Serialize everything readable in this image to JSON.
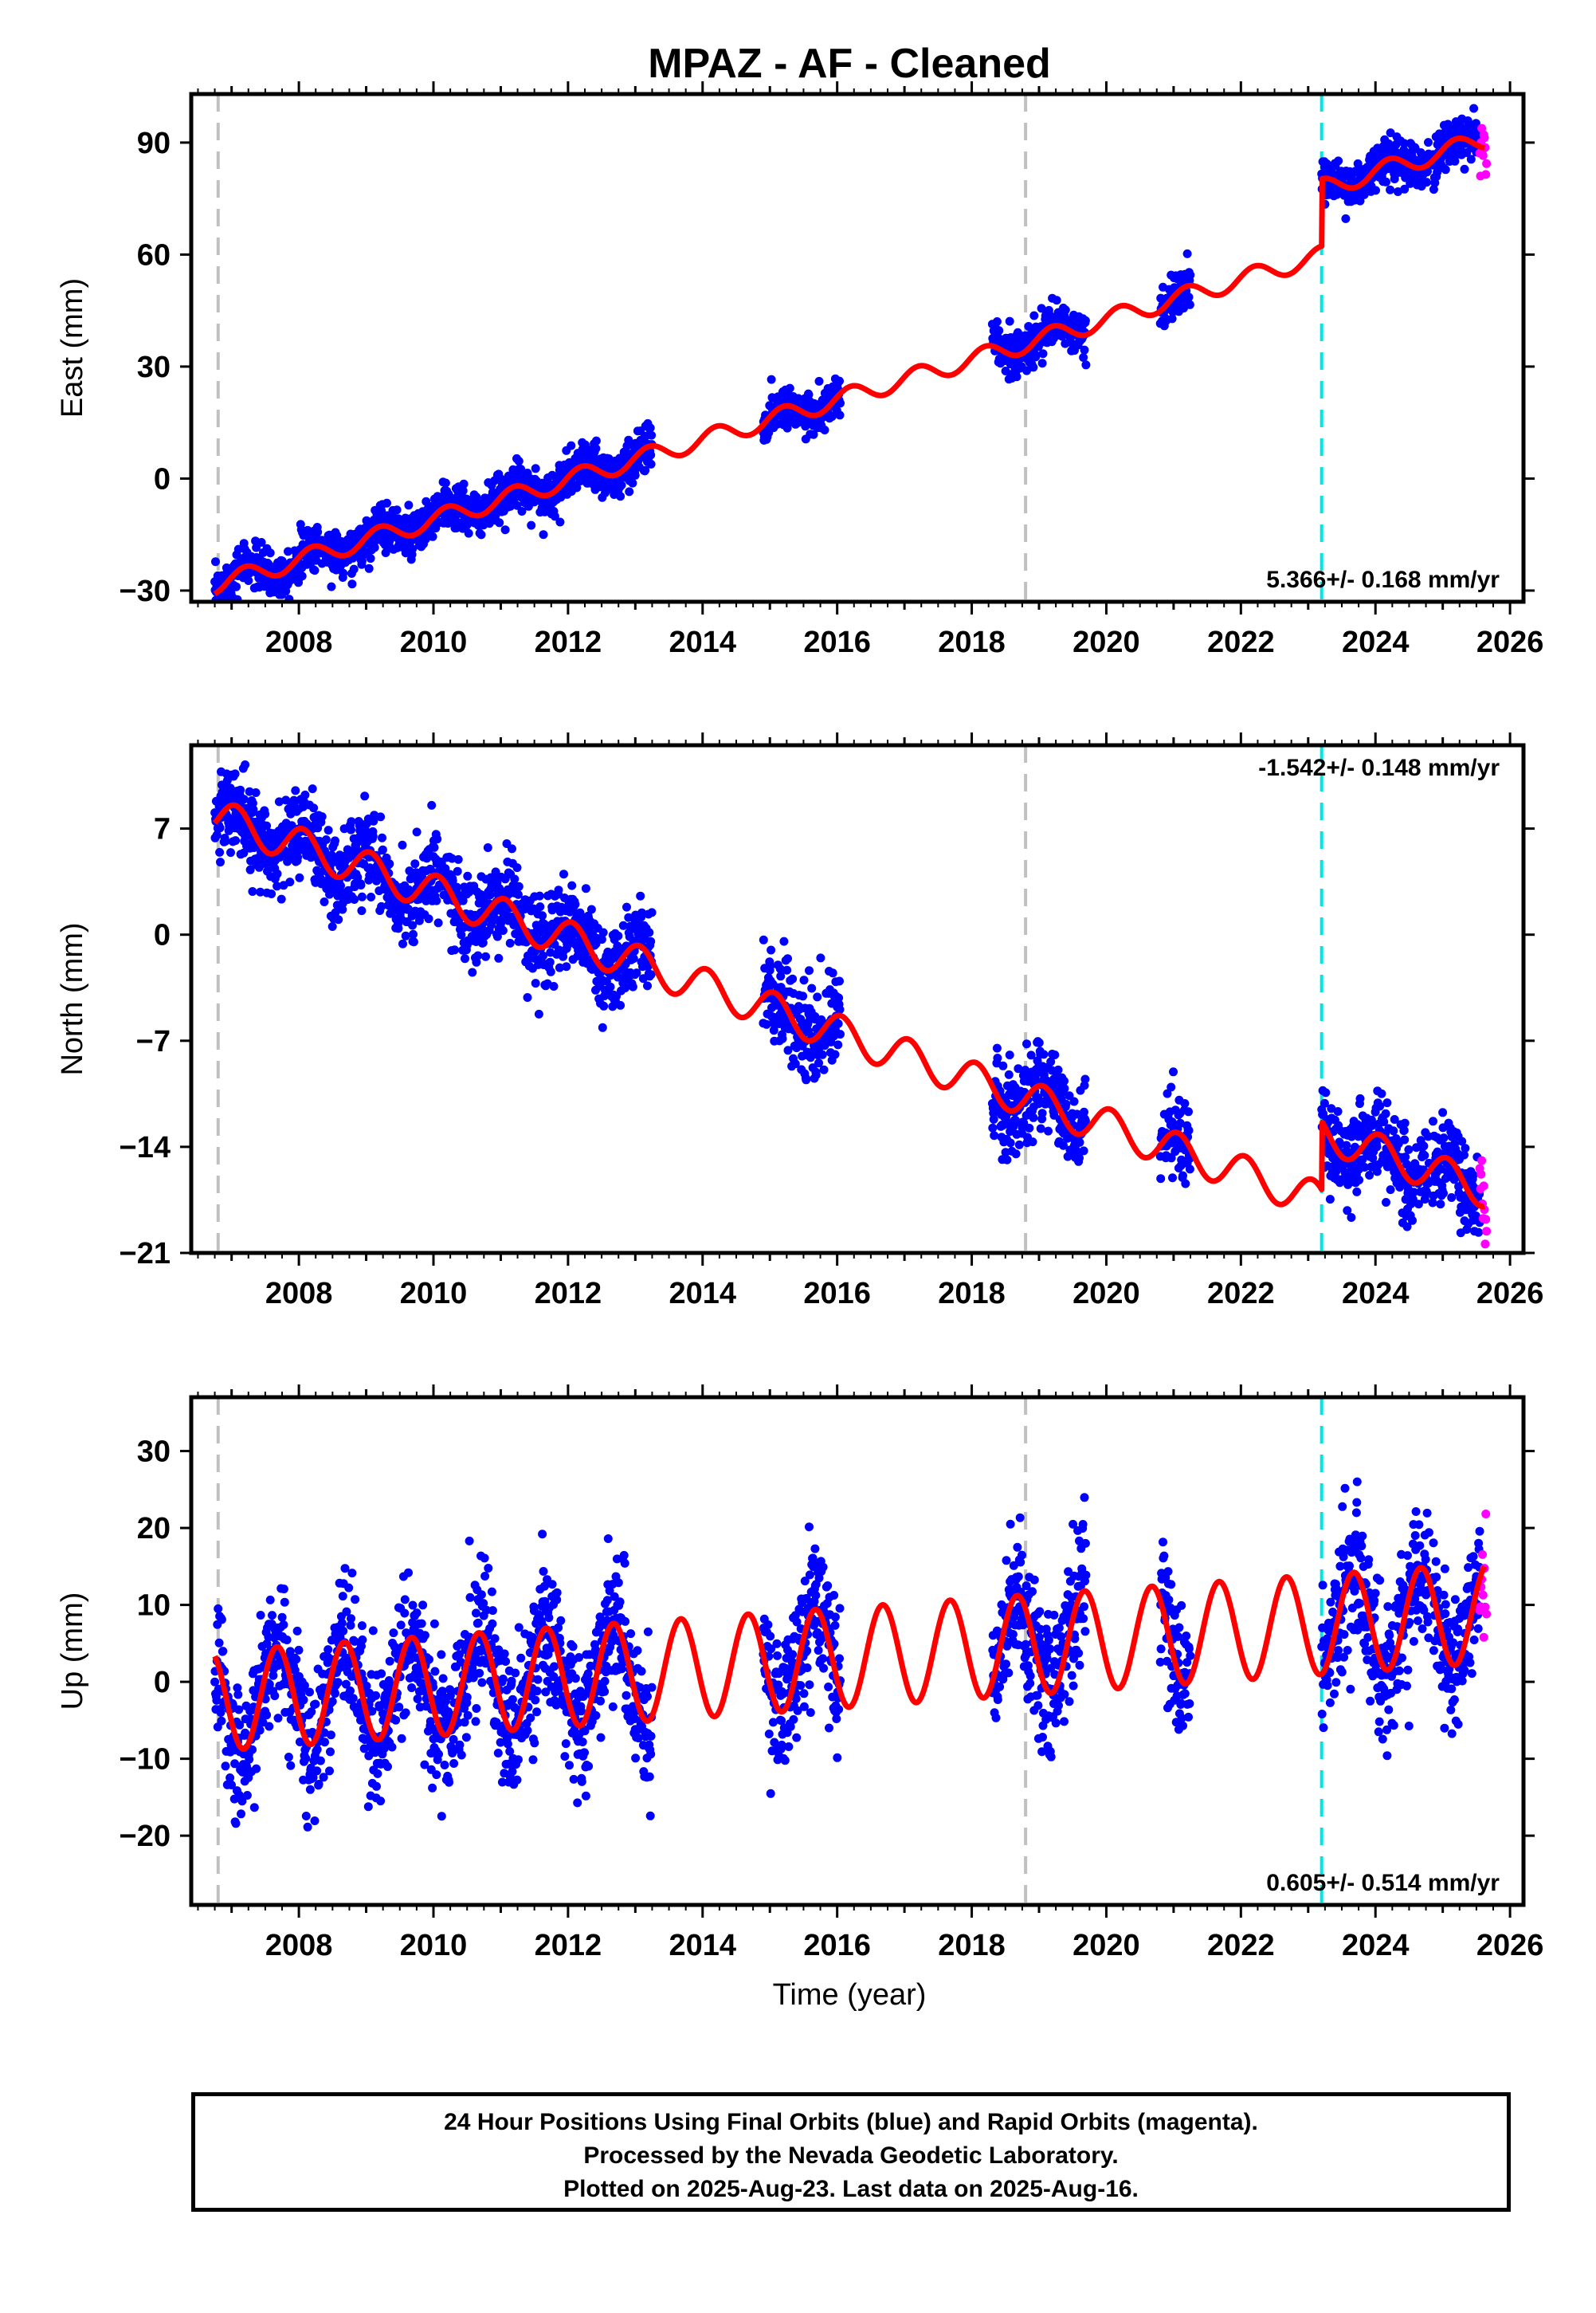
{
  "title": "MPAZ  - AF - Cleaned",
  "xlabel": "Time (year)",
  "footer": {
    "line1": "24 Hour Positions Using Final Orbits (blue) and Rapid Orbits (magenta).",
    "line2": "Processed by the Nevada Geodetic Laboratory.",
    "line3": "Plotted on 2025-Aug-23. Last data on 2025-Aug-16."
  },
  "colors": {
    "final_orbits": "#0000ff",
    "rapid_orbits": "#ff00ff",
    "model": "#ff0000",
    "equipment_change": "#c0c0c0",
    "earthquake": "#00e5e5"
  },
  "chart_data": [
    {
      "type": "scatter",
      "ylabel": "East (mm)",
      "rate": "5.366+/- 0.168 mm/yr",
      "rate_position": "bottom-right",
      "xlim": [
        2006.4,
        2026.2
      ],
      "ylim": [
        -33,
        103
      ],
      "yticks": [
        -30,
        0,
        30,
        60,
        90
      ],
      "xticks": [
        2008,
        2010,
        2012,
        2014,
        2016,
        2018,
        2020,
        2022,
        2024,
        2026
      ],
      "equipment_change_lines": [
        2006.8,
        2018.8
      ],
      "earthquake_lines": [
        2023.2
      ],
      "model": {
        "start": 2006.75,
        "value_at_start": -28.5,
        "slope": 5.366,
        "amplitude": 2.5,
        "phase": 0.3,
        "steps": [
          {
            "x": 2023.2,
            "offset": 18
          }
        ]
      },
      "data_gaps": [
        [
          2013.25,
          2014.9
        ],
        [
          2016.05,
          2018.3
        ],
        [
          2019.7,
          2020.8
        ],
        [
          2021.25,
          2023.2
        ],
        [
          2024.8,
          2024.85
        ]
      ],
      "scatter": 3.0,
      "rapid_orbit_span": [
        2025.55,
        2025.65
      ],
      "series": [
        {
          "name": "Final Orbits"
        },
        {
          "name": "Rapid Orbits"
        },
        {
          "name": "Model"
        }
      ]
    },
    {
      "type": "scatter",
      "ylabel": "North (mm)",
      "rate": "-1.542+/- 0.148 mm/yr",
      "rate_position": "top-right",
      "xlim": [
        2006.4,
        2026.2
      ],
      "ylim": [
        -21,
        12.5
      ],
      "yticks": [
        -21,
        -14,
        -7,
        0,
        7
      ],
      "xticks": [
        2008,
        2010,
        2012,
        2014,
        2016,
        2018,
        2020,
        2022,
        2024,
        2026
      ],
      "equipment_change_lines": [
        2006.8,
        2018.8
      ],
      "earthquake_lines": [
        2023.2
      ],
      "model": {
        "start": 2006.75,
        "value_at_start": 7.8,
        "slope": -1.542,
        "amplitude": 1.2,
        "phase": 1.2,
        "steps": [
          {
            "x": 2023.2,
            "offset": 4.5
          }
        ]
      },
      "data_gaps": [
        [
          2013.25,
          2014.9
        ],
        [
          2016.05,
          2018.3
        ],
        [
          2019.7,
          2020.8
        ],
        [
          2021.25,
          2023.2
        ],
        [
          2024.8,
          2024.85
        ]
      ],
      "scatter": 1.4,
      "rapid_orbit_span": [
        2025.55,
        2025.65
      ],
      "series": [
        {
          "name": "Final Orbits"
        },
        {
          "name": "Rapid Orbits"
        },
        {
          "name": "Model"
        }
      ]
    },
    {
      "type": "scatter",
      "ylabel": "Up (mm)",
      "rate": "0.605+/- 0.514 mm/yr",
      "rate_position": "bottom-right",
      "xlim": [
        2006.4,
        2026.2
      ],
      "ylim": [
        -29,
        37
      ],
      "yticks": [
        -20,
        -10,
        0,
        10,
        20,
        30
      ],
      "xticks": [
        2008,
        2010,
        2012,
        2014,
        2016,
        2018,
        2020,
        2022,
        2024,
        2026
      ],
      "equipment_change_lines": [
        2006.8,
        2018.8
      ],
      "earthquake_lines": [
        2023.2
      ],
      "model": {
        "start": 2006.75,
        "value_at_start": -2.5,
        "slope": 0.605,
        "amplitude": 6.5,
        "phase": 3.6,
        "steps": [
          {
            "x": 2023.2,
            "offset": 0
          }
        ]
      },
      "data_gaps": [
        [
          2013.25,
          2014.9
        ],
        [
          2016.05,
          2018.3
        ],
        [
          2019.7,
          2020.8
        ],
        [
          2021.25,
          2023.2
        ],
        [
          2024.8,
          2024.85
        ]
      ],
      "scatter": 4.5,
      "rapid_orbit_span": [
        2025.55,
        2025.65
      ],
      "series": [
        {
          "name": "Final Orbits"
        },
        {
          "name": "Rapid Orbits"
        },
        {
          "name": "Model"
        }
      ]
    }
  ]
}
